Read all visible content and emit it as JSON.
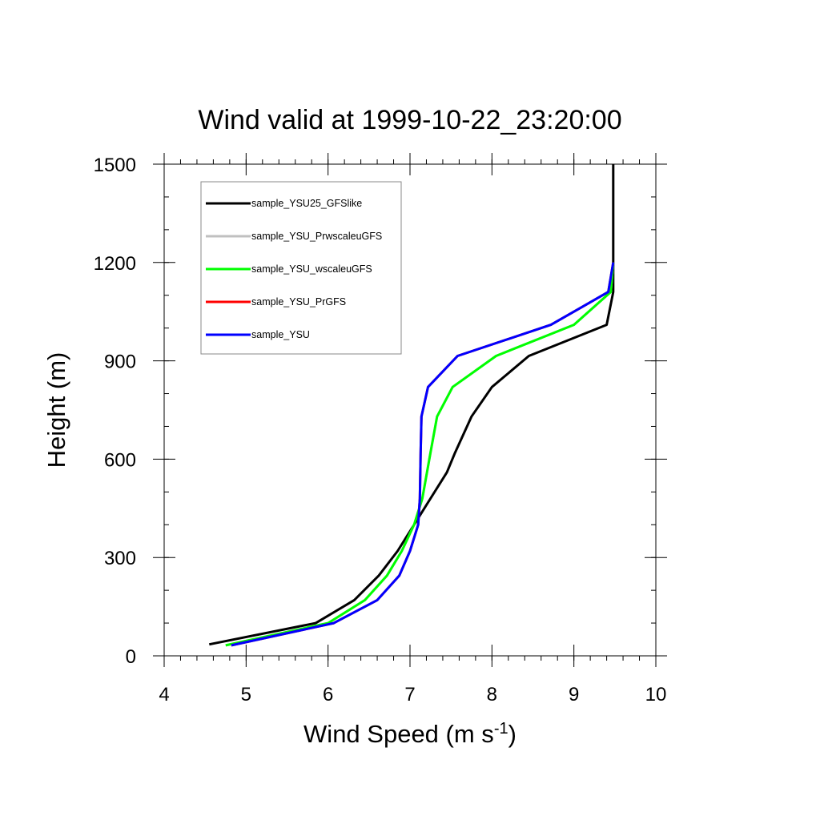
{
  "chart_data": {
    "type": "line",
    "title": "Wind valid at 1999-10-22_23:20:00",
    "xlabel": "Wind Speed (m s",
    "xlabel_sup": "-1",
    "xlabel_end": ")",
    "ylabel": "Height (m)",
    "xlim": [
      4,
      10
    ],
    "ylim": [
      0,
      1500
    ],
    "x_ticks": [
      4,
      5,
      6,
      7,
      8,
      9,
      10
    ],
    "y_ticks": [
      0,
      300,
      600,
      900,
      1200,
      1500
    ],
    "grid": false,
    "legend_position": "top-left",
    "series": [
      {
        "name": "sample_YSU25_GFSlike",
        "color": "#000000",
        "x": [
          4.55,
          5.85,
          6.32,
          6.62,
          6.85,
          7.05,
          7.25,
          7.45,
          7.55,
          7.75,
          8.0,
          8.45,
          9.4,
          9.48,
          9.48,
          9.48
        ],
        "y": [
          35,
          100,
          170,
          245,
          320,
          400,
          480,
          560,
          620,
          730,
          820,
          915,
          1010,
          1110,
          1200,
          1500
        ]
      },
      {
        "name": "sample_YSU_PrwscaleuGFS",
        "color": "#c0c0c0",
        "x": [
          4.75,
          6.0,
          6.45,
          6.72,
          6.9,
          7.05,
          7.15,
          7.25,
          7.33,
          7.52,
          8.05,
          9.0,
          9.45,
          9.48
        ],
        "y": [
          32,
          100,
          170,
          245,
          320,
          400,
          480,
          620,
          730,
          820,
          915,
          1010,
          1110,
          1200
        ]
      },
      {
        "name": "sample_YSU_wscaleuGFS",
        "color": "#00ff00",
        "x": [
          4.75,
          6.0,
          6.45,
          6.72,
          6.9,
          7.05,
          7.15,
          7.25,
          7.33,
          7.52,
          8.05,
          9.0,
          9.45,
          9.48
        ],
        "y": [
          32,
          100,
          170,
          245,
          320,
          400,
          480,
          620,
          730,
          820,
          915,
          1010,
          1110,
          1200
        ]
      },
      {
        "name": "sample_YSU_PrGFS",
        "color": "#ff0000",
        "x": [
          4.82,
          6.07,
          6.6,
          6.87,
          7.0,
          7.1,
          7.12,
          7.13,
          7.14,
          7.22,
          7.58,
          8.72,
          9.42,
          9.48
        ],
        "y": [
          32,
          100,
          170,
          245,
          320,
          400,
          480,
          620,
          730,
          820,
          915,
          1010,
          1110,
          1200
        ]
      },
      {
        "name": "sample_YSU",
        "color": "#0000ff",
        "x": [
          4.82,
          6.07,
          6.6,
          6.87,
          7.0,
          7.1,
          7.12,
          7.13,
          7.14,
          7.22,
          7.58,
          8.72,
          9.42,
          9.48
        ],
        "y": [
          32,
          100,
          170,
          245,
          320,
          400,
          480,
          620,
          730,
          820,
          915,
          1010,
          1110,
          1200
        ]
      }
    ]
  }
}
